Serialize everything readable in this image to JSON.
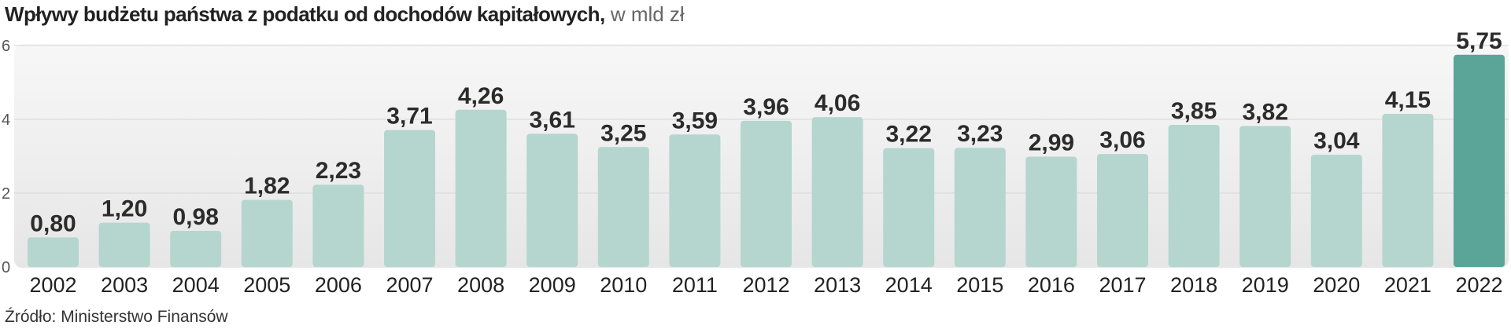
{
  "title": "Wpływy budżetu państwa z podatku od dochodów kapitałowych,",
  "unit": "w mld zł",
  "source": "Źródło: Ministerstwo Finansów",
  "colors": {
    "bar": "#b4d6cf",
    "bar_highlight": "#5aa597",
    "panel": "#ebebeb",
    "grid": "#d6d6d6"
  },
  "chart_data": {
    "type": "bar",
    "title": "Wpływy budżetu państwa z podatku od dochodów kapitałowych, w mld zł",
    "categories": [
      "2002",
      "2003",
      "2004",
      "2005",
      "2006",
      "2007",
      "2008",
      "2009",
      "2010",
      "2011",
      "2012",
      "2013",
      "2014",
      "2015",
      "2016",
      "2017",
      "2018",
      "2019",
      "2020",
      "2021",
      "2022"
    ],
    "values": [
      0.8,
      1.2,
      0.98,
      1.82,
      2.23,
      3.71,
      4.26,
      3.61,
      3.25,
      3.59,
      3.96,
      4.06,
      3.22,
      3.23,
      2.99,
      3.06,
      3.85,
      3.82,
      3.04,
      4.15,
      5.75
    ],
    "value_labels": [
      "0,80",
      "1,20",
      "0,98",
      "1,82",
      "2,23",
      "3,71",
      "4,26",
      "3,61",
      "3,25",
      "3,59",
      "3,96",
      "4,06",
      "3,22",
      "3,23",
      "2,99",
      "3,06",
      "3,85",
      "3,82",
      "3,04",
      "4,15",
      "5,75"
    ],
    "highlight": "2022",
    "yticks": [
      0,
      2,
      4,
      6
    ],
    "ylim": [
      0,
      6
    ],
    "grid": true,
    "xlabel": "",
    "ylabel": ""
  }
}
